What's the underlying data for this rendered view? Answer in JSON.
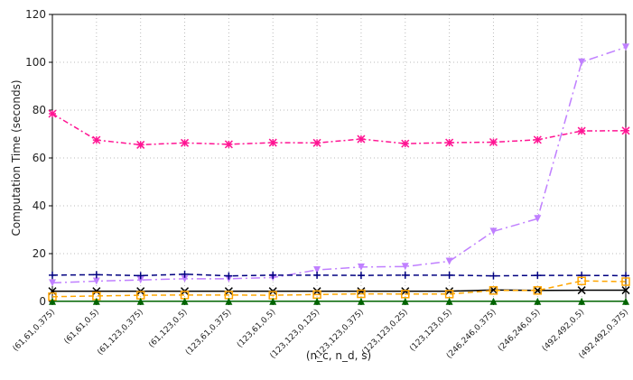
{
  "chart_data": {
    "type": "line",
    "x_label": "(n_c, n_d, s)",
    "y_label": "Computation Time (seconds)",
    "categories": [
      "(61,61,0.375)",
      "(61,61,0.5)",
      "(61,123,0.375)",
      "(61,123,0.5)",
      "(123,61,0.375)",
      "(123,61,0.5)",
      "(123,123,0.125)",
      "(123,123,0.375)",
      "(123,123,0.25)",
      "(123,123,0.5)",
      "(246,246,0.375)",
      "(246,246,0.5)",
      "(492,492,0.5)",
      "(492,492,0.375)"
    ],
    "series": [
      {
        "color": "#ff1493",
        "marker": "star",
        "dash": "6,3,2,3",
        "values": [
          78.5,
          67.5,
          65.5,
          66.3,
          65.7,
          66.4,
          66.3,
          67.9,
          66.0,
          66.4,
          66.6,
          67.6,
          71.3,
          71.4
        ]
      },
      {
        "color": "#c080ff",
        "marker": "tri-down",
        "dash": "10,4,2,4",
        "values": [
          7.8,
          8.5,
          9.0,
          9.5,
          9.5,
          10.0,
          13.2,
          14.4,
          14.6,
          16.8,
          29.3,
          34.6,
          100.1,
          106.3
        ]
      },
      {
        "color": "#000080",
        "marker": "plus",
        "dash": "6,4",
        "values": [
          11.0,
          11.2,
          10.8,
          11.4,
          10.7,
          11.0,
          11.0,
          10.9,
          11.0,
          11.0,
          10.7,
          10.9,
          10.9,
          10.8
        ]
      },
      {
        "color": "#000000",
        "marker": "cross",
        "dash": "none",
        "values": [
          4.3,
          4.3,
          4.3,
          4.3,
          4.3,
          4.3,
          4.3,
          4.3,
          4.3,
          4.3,
          4.8,
          4.6,
          4.7,
          4.7
        ]
      },
      {
        "color": "#ffa500",
        "marker": "square",
        "dash": "6,4",
        "values": [
          2.0,
          2.3,
          2.6,
          2.7,
          2.7,
          2.6,
          2.9,
          3.2,
          3.1,
          3.1,
          4.6,
          4.6,
          8.6,
          8.3
        ]
      },
      {
        "color": "#006400",
        "marker": "tri-up",
        "dash": "none",
        "values": [
          0.1,
          0.1,
          0.1,
          0.1,
          0.1,
          0.1,
          0.1,
          0.1,
          0.1,
          0.1,
          0.1,
          0.1,
          0.1,
          0.1
        ]
      }
    ],
    "ylim": [
      0,
      120
    ],
    "yticks": [
      0,
      20,
      40,
      60,
      80,
      100,
      120
    ],
    "grid": true
  }
}
